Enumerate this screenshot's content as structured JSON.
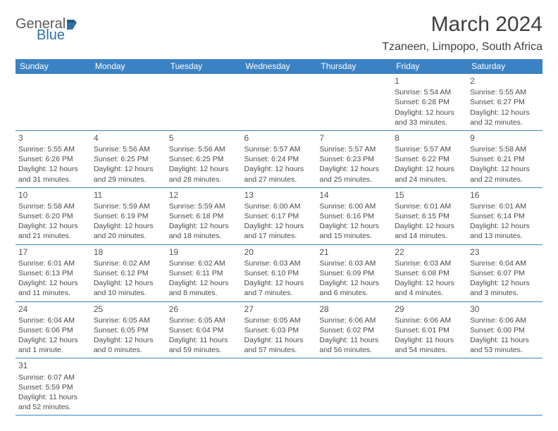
{
  "logo": {
    "part1": "General",
    "part2": "Blue"
  },
  "title": "March 2024",
  "location": "Tzaneen, Limpopo, South Africa",
  "colors": {
    "header_bg": "#3b82c4",
    "header_text": "#ffffff",
    "border": "#3b82c4",
    "body_text": "#4a4a4a",
    "title_text": "#404040",
    "logo_gray": "#5a5a5a",
    "logo_blue": "#2f6fa7",
    "background": "#ffffff"
  },
  "typography": {
    "title_fontsize": 30,
    "location_fontsize": 16,
    "header_fontsize": 12,
    "cell_fontsize": 10.5,
    "daynum_fontsize": 12
  },
  "weekdays": [
    "Sunday",
    "Monday",
    "Tuesday",
    "Wednesday",
    "Thursday",
    "Friday",
    "Saturday"
  ],
  "weeks": [
    [
      {
        "empty": true
      },
      {
        "empty": true
      },
      {
        "empty": true
      },
      {
        "empty": true
      },
      {
        "empty": true
      },
      {
        "day": "1",
        "sunrise": "Sunrise: 5:54 AM",
        "sunset": "Sunset: 6:28 PM",
        "daylight": "Daylight: 12 hours and 33 minutes."
      },
      {
        "day": "2",
        "sunrise": "Sunrise: 5:55 AM",
        "sunset": "Sunset: 6:27 PM",
        "daylight": "Daylight: 12 hours and 32 minutes."
      }
    ],
    [
      {
        "day": "3",
        "sunrise": "Sunrise: 5:55 AM",
        "sunset": "Sunset: 6:26 PM",
        "daylight": "Daylight: 12 hours and 31 minutes."
      },
      {
        "day": "4",
        "sunrise": "Sunrise: 5:56 AM",
        "sunset": "Sunset: 6:25 PM",
        "daylight": "Daylight: 12 hours and 29 minutes."
      },
      {
        "day": "5",
        "sunrise": "Sunrise: 5:56 AM",
        "sunset": "Sunset: 6:25 PM",
        "daylight": "Daylight: 12 hours and 28 minutes."
      },
      {
        "day": "6",
        "sunrise": "Sunrise: 5:57 AM",
        "sunset": "Sunset: 6:24 PM",
        "daylight": "Daylight: 12 hours and 27 minutes."
      },
      {
        "day": "7",
        "sunrise": "Sunrise: 5:57 AM",
        "sunset": "Sunset: 6:23 PM",
        "daylight": "Daylight: 12 hours and 25 minutes."
      },
      {
        "day": "8",
        "sunrise": "Sunrise: 5:57 AM",
        "sunset": "Sunset: 6:22 PM",
        "daylight": "Daylight: 12 hours and 24 minutes."
      },
      {
        "day": "9",
        "sunrise": "Sunrise: 5:58 AM",
        "sunset": "Sunset: 6:21 PM",
        "daylight": "Daylight: 12 hours and 22 minutes."
      }
    ],
    [
      {
        "day": "10",
        "sunrise": "Sunrise: 5:58 AM",
        "sunset": "Sunset: 6:20 PM",
        "daylight": "Daylight: 12 hours and 21 minutes."
      },
      {
        "day": "11",
        "sunrise": "Sunrise: 5:59 AM",
        "sunset": "Sunset: 6:19 PM",
        "daylight": "Daylight: 12 hours and 20 minutes."
      },
      {
        "day": "12",
        "sunrise": "Sunrise: 5:59 AM",
        "sunset": "Sunset: 6:18 PM",
        "daylight": "Daylight: 12 hours and 18 minutes."
      },
      {
        "day": "13",
        "sunrise": "Sunrise: 6:00 AM",
        "sunset": "Sunset: 6:17 PM",
        "daylight": "Daylight: 12 hours and 17 minutes."
      },
      {
        "day": "14",
        "sunrise": "Sunrise: 6:00 AM",
        "sunset": "Sunset: 6:16 PM",
        "daylight": "Daylight: 12 hours and 15 minutes."
      },
      {
        "day": "15",
        "sunrise": "Sunrise: 6:01 AM",
        "sunset": "Sunset: 6:15 PM",
        "daylight": "Daylight: 12 hours and 14 minutes."
      },
      {
        "day": "16",
        "sunrise": "Sunrise: 6:01 AM",
        "sunset": "Sunset: 6:14 PM",
        "daylight": "Daylight: 12 hours and 13 minutes."
      }
    ],
    [
      {
        "day": "17",
        "sunrise": "Sunrise: 6:01 AM",
        "sunset": "Sunset: 6:13 PM",
        "daylight": "Daylight: 12 hours and 11 minutes."
      },
      {
        "day": "18",
        "sunrise": "Sunrise: 6:02 AM",
        "sunset": "Sunset: 6:12 PM",
        "daylight": "Daylight: 12 hours and 10 minutes."
      },
      {
        "day": "19",
        "sunrise": "Sunrise: 6:02 AM",
        "sunset": "Sunset: 6:11 PM",
        "daylight": "Daylight: 12 hours and 8 minutes."
      },
      {
        "day": "20",
        "sunrise": "Sunrise: 6:03 AM",
        "sunset": "Sunset: 6:10 PM",
        "daylight": "Daylight: 12 hours and 7 minutes."
      },
      {
        "day": "21",
        "sunrise": "Sunrise: 6:03 AM",
        "sunset": "Sunset: 6:09 PM",
        "daylight": "Daylight: 12 hours and 6 minutes."
      },
      {
        "day": "22",
        "sunrise": "Sunrise: 6:03 AM",
        "sunset": "Sunset: 6:08 PM",
        "daylight": "Daylight: 12 hours and 4 minutes."
      },
      {
        "day": "23",
        "sunrise": "Sunrise: 6:04 AM",
        "sunset": "Sunset: 6:07 PM",
        "daylight": "Daylight: 12 hours and 3 minutes."
      }
    ],
    [
      {
        "day": "24",
        "sunrise": "Sunrise: 6:04 AM",
        "sunset": "Sunset: 6:06 PM",
        "daylight": "Daylight: 12 hours and 1 minute."
      },
      {
        "day": "25",
        "sunrise": "Sunrise: 6:05 AM",
        "sunset": "Sunset: 6:05 PM",
        "daylight": "Daylight: 12 hours and 0 minutes."
      },
      {
        "day": "26",
        "sunrise": "Sunrise: 6:05 AM",
        "sunset": "Sunset: 6:04 PM",
        "daylight": "Daylight: 11 hours and 59 minutes."
      },
      {
        "day": "27",
        "sunrise": "Sunrise: 6:05 AM",
        "sunset": "Sunset: 6:03 PM",
        "daylight": "Daylight: 11 hours and 57 minutes."
      },
      {
        "day": "28",
        "sunrise": "Sunrise: 6:06 AM",
        "sunset": "Sunset: 6:02 PM",
        "daylight": "Daylight: 11 hours and 56 minutes."
      },
      {
        "day": "29",
        "sunrise": "Sunrise: 6:06 AM",
        "sunset": "Sunset: 6:01 PM",
        "daylight": "Daylight: 11 hours and 54 minutes."
      },
      {
        "day": "30",
        "sunrise": "Sunrise: 6:06 AM",
        "sunset": "Sunset: 6:00 PM",
        "daylight": "Daylight: 11 hours and 53 minutes."
      }
    ],
    [
      {
        "day": "31",
        "sunrise": "Sunrise: 6:07 AM",
        "sunset": "Sunset: 5:59 PM",
        "daylight": "Daylight: 11 hours and 52 minutes."
      },
      {
        "empty": true
      },
      {
        "empty": true
      },
      {
        "empty": true
      },
      {
        "empty": true
      },
      {
        "empty": true
      },
      {
        "empty": true
      }
    ]
  ]
}
